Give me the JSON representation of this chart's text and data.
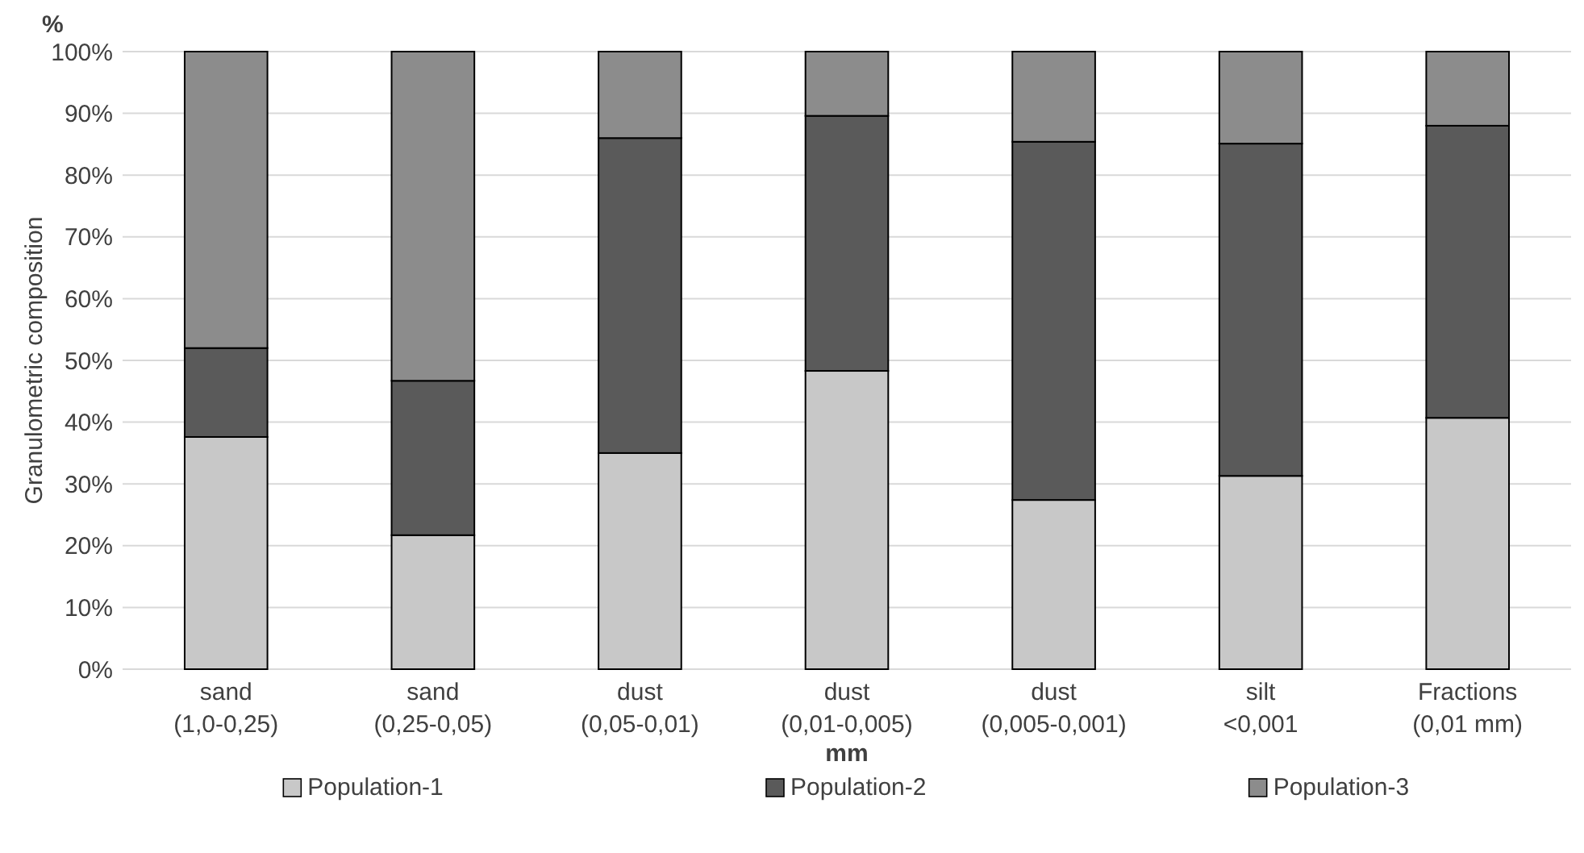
{
  "chart_data": {
    "type": "bar",
    "stacked": true,
    "xlabel": "mm",
    "ylabel": "Granulometric composition",
    "annotations": [
      "%"
    ],
    "categories": [
      "sand (1,0-0,25)",
      "sand (0,25-0,05)",
      "dust (0,05-0,01)",
      "dust (0,01-0,005)",
      "dust (0,005-0,001)",
      "silt <0,001",
      "Fractions (0,01 mm)"
    ],
    "series": [
      {
        "name": "Population-1",
        "color": "#c8c8c8",
        "values": [
          37.6,
          21.7,
          35,
          48.3,
          27.4,
          31.3,
          40.7
        ]
      },
      {
        "name": "Population-2",
        "color": "#5a5a5a",
        "values": [
          14.4,
          25,
          51,
          41.3,
          58,
          53.8,
          47.3
        ]
      },
      {
        "name": "Population-3",
        "color": "#8c8c8c",
        "values": [
          48,
          53.3,
          14,
          10.4,
          14.6,
          14.9,
          12
        ]
      }
    ],
    "ylim": [
      0,
      100
    ],
    "yticks": [
      {
        "value": 0,
        "label": "0%"
      },
      {
        "value": 10,
        "label": "10%"
      },
      {
        "value": 20,
        "label": "20%"
      },
      {
        "value": 30,
        "label": "30%"
      },
      {
        "value": 40,
        "label": "40%"
      },
      {
        "value": 50,
        "label": "50%"
      },
      {
        "value": 60,
        "label": "60%"
      },
      {
        "value": 70,
        "label": "70%"
      },
      {
        "value": 80,
        "label": "80%"
      },
      {
        "value": 90,
        "label": "90%"
      },
      {
        "value": 100,
        "label": "100%"
      }
    ],
    "grid": "y",
    "legend": "bottom"
  }
}
